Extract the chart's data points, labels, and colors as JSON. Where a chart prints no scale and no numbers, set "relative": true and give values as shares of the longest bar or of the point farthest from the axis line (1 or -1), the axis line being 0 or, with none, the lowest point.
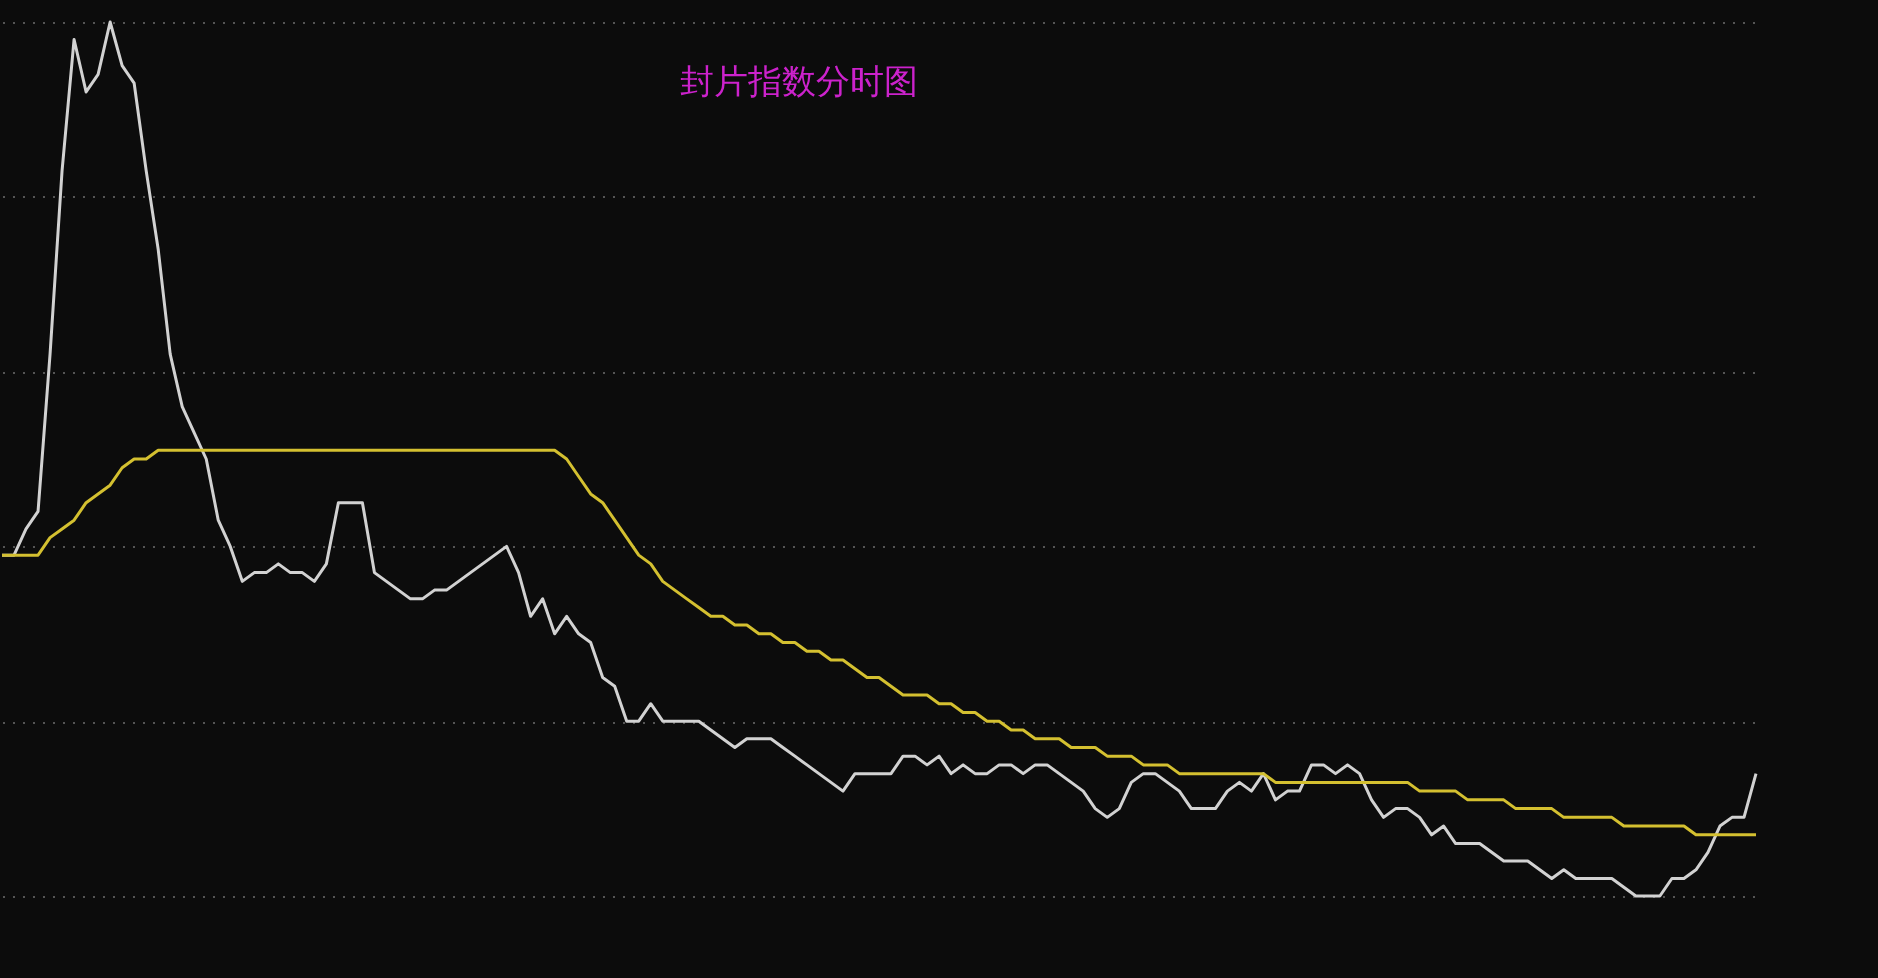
{
  "chart_data": {
    "type": "line",
    "title": "封片指数分时图",
    "relative": true,
    "grid": "y",
    "legend": false,
    "categories": [
      null,
      null,
      null,
      null,
      null,
      null,
      null,
      null,
      null,
      null,
      null,
      null,
      null,
      null,
      null,
      null,
      null,
      null,
      null,
      null,
      null,
      null,
      null,
      null,
      null,
      null,
      null,
      null,
      null,
      null,
      null,
      null,
      null,
      null,
      null,
      null,
      null,
      null,
      null,
      null,
      null,
      null,
      null,
      null,
      null,
      null,
      null,
      null,
      null,
      null,
      null,
      null,
      null,
      null,
      null,
      null,
      null,
      null,
      null,
      null,
      null,
      null,
      null,
      null,
      null,
      null,
      null,
      null,
      null,
      null,
      null,
      null,
      null,
      null,
      null,
      null,
      null,
      null,
      null,
      null,
      null,
      null,
      null,
      null,
      null,
      null,
      null,
      null,
      null,
      null,
      null,
      null,
      null,
      null,
      null,
      null,
      null,
      null,
      null,
      null,
      null,
      null,
      null,
      null,
      null,
      null,
      null,
      null,
      null,
      null,
      null,
      null,
      null,
      null,
      null,
      null,
      null,
      null,
      null,
      null,
      null,
      null,
      null,
      null,
      null,
      null,
      null,
      null,
      null,
      null,
      null,
      null,
      null,
      null,
      null,
      null,
      null,
      null,
      null,
      null,
      null,
      null,
      null,
      null,
      null,
      null,
      null
    ],
    "series": [
      {
        "color": "#d2d2d2",
        "values": [
          0.39,
          0.39,
          0.42,
          0.44,
          0.62,
          0.83,
          0.98,
          0.92,
          0.94,
          1.0,
          0.95,
          0.93,
          0.83,
          0.74,
          0.62,
          0.56,
          0.53,
          0.5,
          0.43,
          0.4,
          0.36,
          0.37,
          0.37,
          0.38,
          0.37,
          0.37,
          0.36,
          0.38,
          0.45,
          0.45,
          0.45,
          0.37,
          0.36,
          0.35,
          0.34,
          0.34,
          0.35,
          0.35,
          0.36,
          0.37,
          0.38,
          0.39,
          0.4,
          0.37,
          0.32,
          0.34,
          0.3,
          0.32,
          0.3,
          0.29,
          0.25,
          0.24,
          0.2,
          0.2,
          0.22,
          0.2,
          0.2,
          0.2,
          0.2,
          0.19,
          0.18,
          0.17,
          0.18,
          0.18,
          0.18,
          0.17,
          0.16,
          0.15,
          0.14,
          0.13,
          0.12,
          0.14,
          0.14,
          0.14,
          0.14,
          0.16,
          0.16,
          0.15,
          0.16,
          0.14,
          0.15,
          0.14,
          0.14,
          0.15,
          0.15,
          0.14,
          0.15,
          0.15,
          0.14,
          0.13,
          0.12,
          0.1,
          0.09,
          0.1,
          0.13,
          0.14,
          0.14,
          0.13,
          0.12,
          0.1,
          0.1,
          0.1,
          0.12,
          0.13,
          0.12,
          0.14,
          0.11,
          0.12,
          0.12,
          0.15,
          0.15,
          0.14,
          0.15,
          0.14,
          0.11,
          0.09,
          0.1,
          0.1,
          0.09,
          0.07,
          0.08,
          0.06,
          0.06,
          0.06,
          0.05,
          0.04,
          0.04,
          0.04,
          0.03,
          0.02,
          0.03,
          0.02,
          0.02,
          0.02,
          0.02,
          0.01,
          0.0,
          0.0,
          0.0,
          0.02,
          0.02,
          0.03,
          0.05,
          0.08,
          0.09,
          0.09,
          0.14
        ]
      },
      {
        "color": "#d4c030",
        "values": [
          0.39,
          0.39,
          0.39,
          0.39,
          0.41,
          0.42,
          0.43,
          0.45,
          0.46,
          0.47,
          0.49,
          0.5,
          0.5,
          0.51,
          0.51,
          0.51,
          0.51,
          0.51,
          0.51,
          0.51,
          0.51,
          0.51,
          0.51,
          0.51,
          0.51,
          0.51,
          0.51,
          0.51,
          0.51,
          0.51,
          0.51,
          0.51,
          0.51,
          0.51,
          0.51,
          0.51,
          0.51,
          0.51,
          0.51,
          0.51,
          0.51,
          0.51,
          0.51,
          0.51,
          0.51,
          0.51,
          0.51,
          0.5,
          0.48,
          0.46,
          0.45,
          0.43,
          0.41,
          0.39,
          0.38,
          0.36,
          0.35,
          0.34,
          0.33,
          0.32,
          0.32,
          0.31,
          0.31,
          0.3,
          0.3,
          0.29,
          0.29,
          0.28,
          0.28,
          0.27,
          0.27,
          0.26,
          0.25,
          0.25,
          0.24,
          0.23,
          0.23,
          0.23,
          0.22,
          0.22,
          0.21,
          0.21,
          0.2,
          0.2,
          0.19,
          0.19,
          0.18,
          0.18,
          0.18,
          0.17,
          0.17,
          0.17,
          0.16,
          0.16,
          0.16,
          0.15,
          0.15,
          0.15,
          0.14,
          0.14,
          0.14,
          0.14,
          0.14,
          0.14,
          0.14,
          0.14,
          0.13,
          0.13,
          0.13,
          0.13,
          0.13,
          0.13,
          0.13,
          0.13,
          0.13,
          0.13,
          0.13,
          0.13,
          0.12,
          0.12,
          0.12,
          0.12,
          0.11,
          0.11,
          0.11,
          0.11,
          0.1,
          0.1,
          0.1,
          0.1,
          0.09,
          0.09,
          0.09,
          0.09,
          0.09,
          0.08,
          0.08,
          0.08,
          0.08,
          0.08,
          0.08,
          0.07,
          0.07,
          0.07,
          0.07,
          0.07,
          0.07
        ]
      }
    ]
  }
}
